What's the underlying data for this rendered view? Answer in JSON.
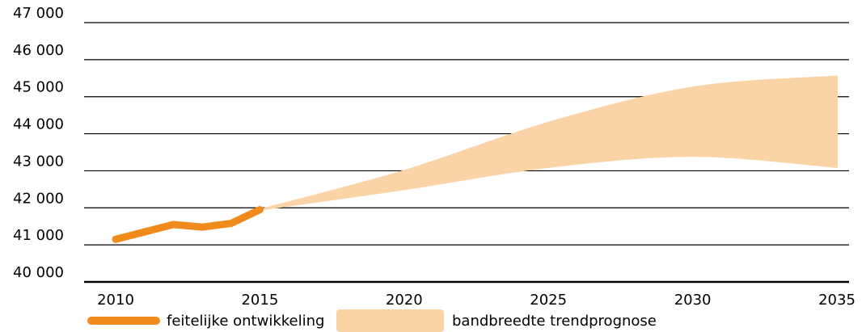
{
  "chart_data": {
    "type": "line",
    "x_ticks": [
      "2010",
      "2015",
      "2020",
      "2025",
      "2030",
      "2035"
    ],
    "y_ticks": [
      "40 000",
      "41 000",
      "42 000",
      "43 000",
      "44 000",
      "45 000",
      "46 000",
      "47 000"
    ],
    "xlim": [
      2010,
      2035
    ],
    "ylim": [
      40000,
      47000
    ],
    "grid": "horizontal",
    "legend_position": "bottom",
    "series": [
      {
        "name": "feitelijke ontwikkeling",
        "color": "#ef8a1b",
        "x": [
          2010,
          2011,
          2012,
          2013,
          2014,
          2015
        ],
        "y": [
          41150,
          41350,
          41550,
          41480,
          41580,
          41950
        ]
      }
    ],
    "band": {
      "name": "bandbreedte trendprognose",
      "color": "#fad4a6",
      "x": [
        2015,
        2020,
        2025,
        2030,
        2035
      ],
      "upper": [
        41950,
        43000,
        44300,
        45250,
        45550
      ],
      "lower": [
        41950,
        42500,
        43100,
        43400,
        43100
      ]
    }
  },
  "legend": {
    "line_label": "feitelijke ontwikkeling",
    "band_label": "bandbreedte trendprognose"
  }
}
